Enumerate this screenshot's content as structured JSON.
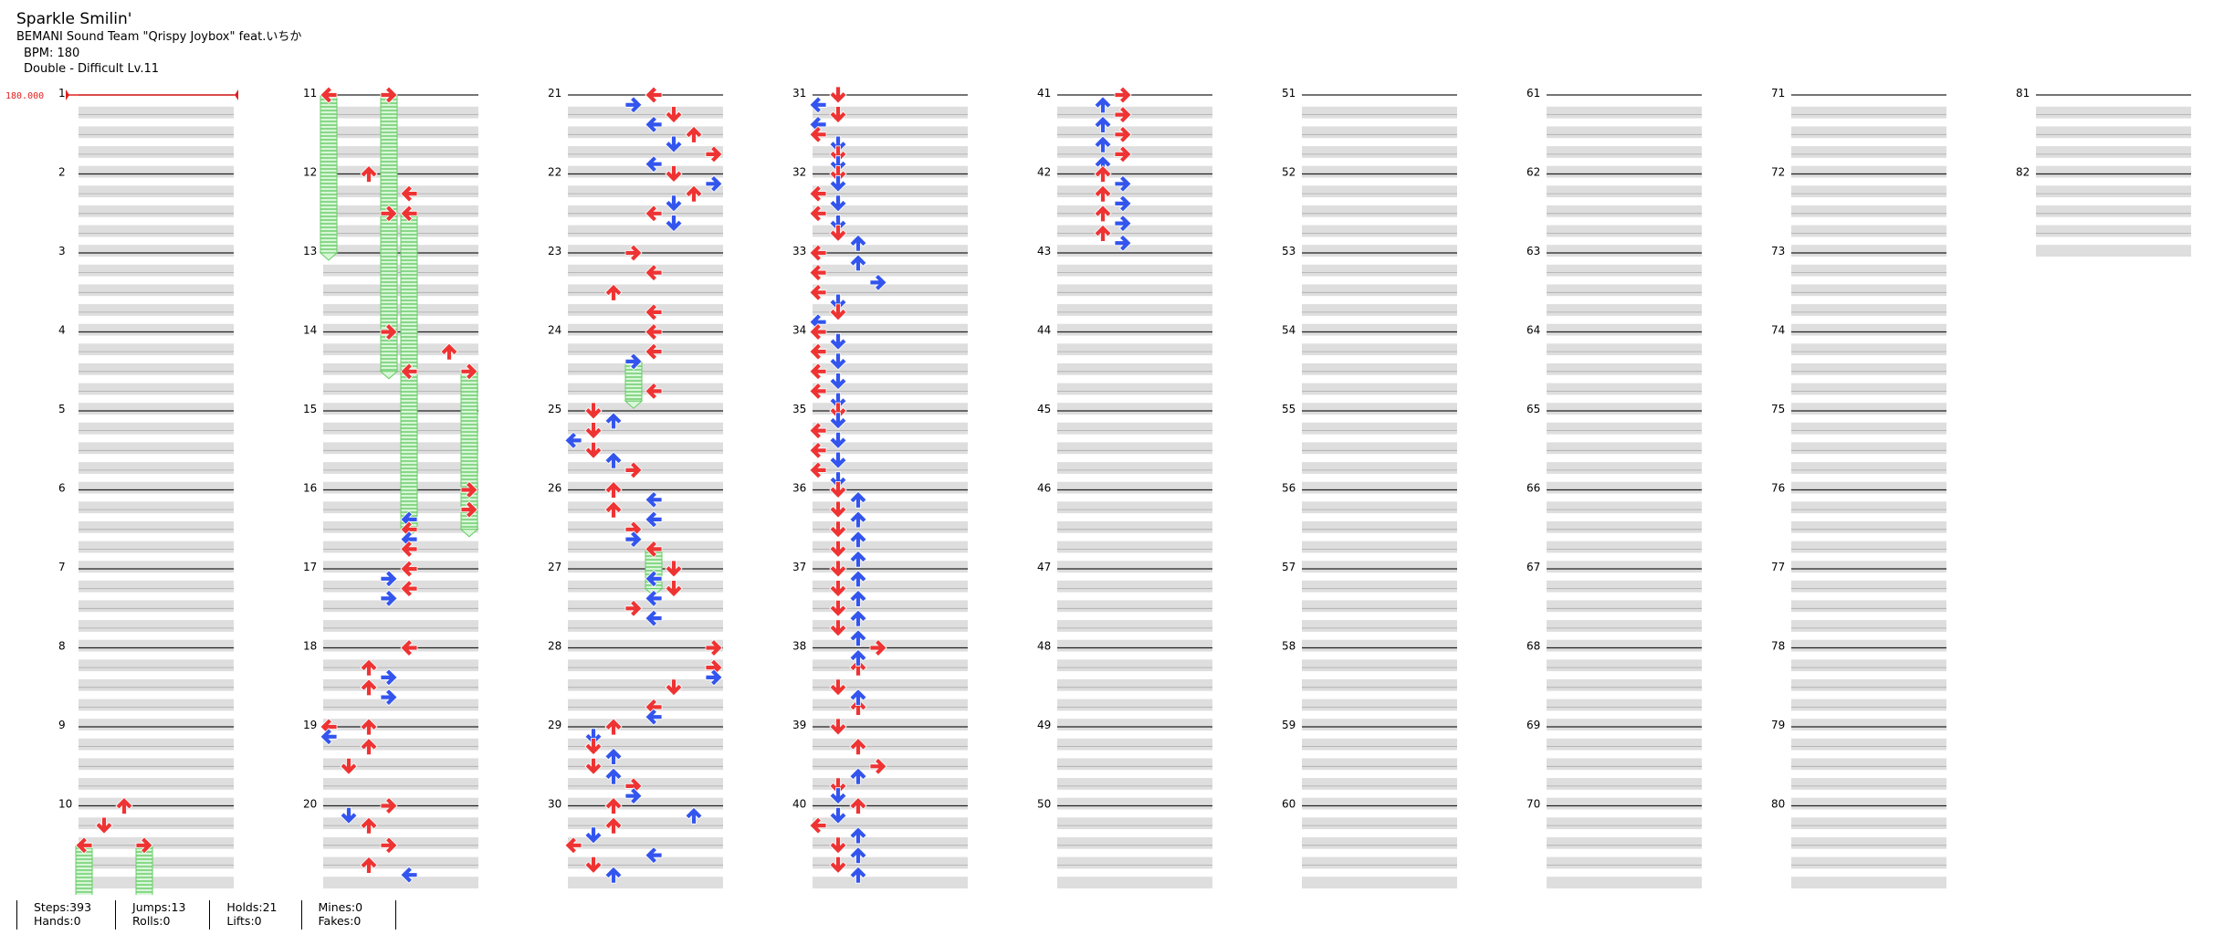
{
  "song": {
    "title": "Sparkle Smilin'",
    "artist": "BEMANI Sound Team \"Qrispy Joybox\" feat.いちか",
    "bpm_text": "BPM: 180",
    "chart_text": "Double - Difficult  Lv.11"
  },
  "bpm_marker": {
    "text": "180.000",
    "color": "#e02020"
  },
  "colors": {
    "quarter": "#ee3333",
    "eighth": "#3355ee",
    "hold": "#66cc66",
    "hold_fill": "#ccf2cc",
    "band": "#dedede"
  },
  "measures": [
    "1",
    "2",
    "3",
    "4",
    "5",
    "6",
    "7",
    "8",
    "9",
    "10",
    "11",
    "12",
    "13",
    "14",
    "15",
    "16",
    "17",
    "18",
    "19",
    "20",
    "21",
    "22",
    "23",
    "24",
    "25",
    "26",
    "27",
    "28",
    "29",
    "30",
    "31",
    "32",
    "33",
    "34",
    "35",
    "36",
    "37",
    "38",
    "39",
    "40",
    "41",
    "42",
    "43",
    "44",
    "45",
    "46",
    "47",
    "48",
    "49",
    "50",
    "51",
    "52",
    "53",
    "54",
    "55",
    "56",
    "57",
    "58",
    "59",
    "60",
    "61",
    "62",
    "63",
    "64",
    "65",
    "66",
    "67",
    "68",
    "69",
    "70",
    "71",
    "72",
    "73",
    "74",
    "75",
    "76",
    "77",
    "78",
    "79",
    "80",
    "81",
    "82"
  ],
  "stats": {
    "steps": "Steps:393",
    "jumps": "Jumps:13",
    "holds": "Holds:21",
    "mines": "Mines:0",
    "hands": "Hands:0",
    "rolls": "Rolls:0",
    "lifts": "Lifts:0",
    "fakes": "Fakes:0"
  },
  "chart_data": {
    "type": "table",
    "chart_kind": "dance-double step chart",
    "bpm": 180,
    "measures_total": 82,
    "lanes": [
      "left",
      "down",
      "up",
      "right",
      "left",
      "down",
      "up",
      "right"
    ],
    "notes": [
      {
        "m": 10,
        "beat": 0,
        "lane": 2
      },
      {
        "m": 10,
        "beat": 1,
        "lane": 1
      },
      {
        "m": 10,
        "beat": 2,
        "lane": 0,
        "hold": 1
      },
      {
        "m": 10,
        "beat": 2,
        "lane": 3,
        "hold": 1
      },
      {
        "m": 11,
        "beat": 0,
        "lane": 0,
        "hold": 2
      },
      {
        "m": 11,
        "beat": 0,
        "lane": 3,
        "hold": 2
      },
      {
        "m": 12,
        "beat": 0,
        "lane": 2
      },
      {
        "m": 12,
        "beat": 1,
        "lane": 4
      },
      {
        "m": 12,
        "beat": 2,
        "lane": 3,
        "hold": 2
      },
      {
        "m": 12,
        "beat": 2,
        "lane": 4,
        "hold": 2
      },
      {
        "m": 14,
        "beat": 0,
        "lane": 3
      },
      {
        "m": 14,
        "beat": 1,
        "lane": 6
      },
      {
        "m": 14,
        "beat": 2,
        "lane": 4,
        "hold": 2
      },
      {
        "m": 14,
        "beat": 2,
        "lane": 7,
        "hold": 2
      },
      {
        "m": 16,
        "beat": 0,
        "lane": 7
      },
      {
        "m": 16,
        "beat": 1,
        "lane": 7
      },
      {
        "m": 16,
        "beat": 1.5,
        "lane": 4
      },
      {
        "m": 16,
        "beat": 2,
        "lane": 4
      },
      {
        "m": 16,
        "beat": 2.5,
        "lane": 4
      },
      {
        "m": 16,
        "beat": 3,
        "lane": 4
      },
      {
        "m": 17,
        "beat": 0,
        "lane": 4
      },
      {
        "m": 17,
        "beat": 0.5,
        "lane": 3
      },
      {
        "m": 17,
        "beat": 1,
        "lane": 4
      },
      {
        "m": 17,
        "beat": 1.5,
        "lane": 3
      },
      {
        "m": 18,
        "beat": 0,
        "lane": 4
      },
      {
        "m": 18,
        "beat": 1,
        "lane": 2
      },
      {
        "m": 18,
        "beat": 1.5,
        "lane": 3
      },
      {
        "m": 18,
        "beat": 2,
        "lane": 2
      },
      {
        "m": 18,
        "beat": 2.5,
        "lane": 3
      },
      {
        "m": 19,
        "beat": 0,
        "lane": 0
      },
      {
        "m": 19,
        "beat": 0,
        "lane": 2
      },
      {
        "m": 19,
        "beat": 0.5,
        "lane": 0
      },
      {
        "m": 19,
        "beat": 1,
        "lane": 2
      },
      {
        "m": 19,
        "beat": 2,
        "lane": 1
      },
      {
        "m": 20,
        "beat": 0,
        "lane": 3
      },
      {
        "m": 20,
        "beat": 0.5,
        "lane": 1
      },
      {
        "m": 20,
        "beat": 1,
        "lane": 2
      },
      {
        "m": 20,
        "beat": 2,
        "lane": 3
      },
      {
        "m": 20,
        "beat": 3,
        "lane": 2
      },
      {
        "m": 20,
        "beat": 3.5,
        "lane": 4
      },
      {
        "m": 21,
        "beat": 0,
        "lane": 4
      },
      {
        "m": 21,
        "beat": 0.5,
        "lane": 3
      },
      {
        "m": 21,
        "beat": 1,
        "lane": 5
      },
      {
        "m": 21,
        "beat": 1.5,
        "lane": 4
      },
      {
        "m": 21,
        "beat": 2,
        "lane": 6
      },
      {
        "m": 21,
        "beat": 2.5,
        "lane": 5
      },
      {
        "m": 21,
        "beat": 3,
        "lane": 7
      },
      {
        "m": 21,
        "beat": 3.5,
        "lane": 4
      },
      {
        "m": 22,
        "beat": 0,
        "lane": 5
      },
      {
        "m": 22,
        "beat": 0.5,
        "lane": 7
      },
      {
        "m": 22,
        "beat": 1,
        "lane": 6
      },
      {
        "m": 22,
        "beat": 1.5,
        "lane": 5
      },
      {
        "m": 22,
        "beat": 2,
        "lane": 4
      },
      {
        "m": 22,
        "beat": 2.5,
        "lane": 5
      },
      {
        "m": 23,
        "beat": 0,
        "lane": 3
      },
      {
        "m": 23,
        "beat": 1,
        "lane": 4
      },
      {
        "m": 23,
        "beat": 2,
        "lane": 2
      },
      {
        "m": 23,
        "beat": 3,
        "lane": 4
      },
      {
        "m": 24,
        "beat": 0,
        "lane": 4
      },
      {
        "m": 24,
        "beat": 1,
        "lane": 4
      },
      {
        "m": 24,
        "beat": 1.5,
        "lane": 3,
        "hold": 0.5
      },
      {
        "m": 24,
        "beat": 3,
        "lane": 4
      },
      {
        "m": 25,
        "beat": 0,
        "lane": 1
      },
      {
        "m": 25,
        "beat": 0.5,
        "lane": 2
      },
      {
        "m": 25,
        "beat": 1,
        "lane": 1
      },
      {
        "m": 25,
        "beat": 1.5,
        "lane": 0
      },
      {
        "m": 25,
        "beat": 2,
        "lane": 1
      },
      {
        "m": 25,
        "beat": 2.5,
        "lane": 2
      },
      {
        "m": 25,
        "beat": 3,
        "lane": 3
      },
      {
        "m": 26,
        "beat": 0,
        "lane": 2
      },
      {
        "m": 26,
        "beat": 0.5,
        "lane": 4
      },
      {
        "m": 26,
        "beat": 1,
        "lane": 2
      },
      {
        "m": 26,
        "beat": 1.5,
        "lane": 4
      },
      {
        "m": 26,
        "beat": 2,
        "lane": 3
      },
      {
        "m": 26,
        "beat": 2.5,
        "lane": 3
      },
      {
        "m": 26,
        "beat": 3,
        "lane": 4,
        "hold": 0.5
      },
      {
        "m": 27,
        "beat": 0,
        "lane": 5
      },
      {
        "m": 27,
        "beat": 0.5,
        "lane": 4
      },
      {
        "m": 27,
        "beat": 1,
        "lane": 5
      },
      {
        "m": 27,
        "beat": 1.5,
        "lane": 4
      },
      {
        "m": 27,
        "beat": 2,
        "lane": 3
      },
      {
        "m": 27,
        "beat": 2.5,
        "lane": 4
      },
      {
        "m": 28,
        "beat": 0,
        "lane": 7
      },
      {
        "m": 28,
        "beat": 1,
        "lane": 7
      },
      {
        "m": 28,
        "beat": 1.5,
        "lane": 7
      },
      {
        "m": 28,
        "beat": 2,
        "lane": 5
      },
      {
        "m": 28,
        "beat": 3,
        "lane": 4
      },
      {
        "m": 28,
        "beat": 3.5,
        "lane": 4
      },
      {
        "m": 29,
        "beat": 0,
        "lane": 2
      },
      {
        "m": 29,
        "beat": 0.5,
        "lane": 1
      },
      {
        "m": 29,
        "beat": 1,
        "lane": 1
      },
      {
        "m": 29,
        "beat": 1.5,
        "lane": 2
      },
      {
        "m": 29,
        "beat": 2,
        "lane": 1
      },
      {
        "m": 29,
        "beat": 2.5,
        "lane": 2
      },
      {
        "m": 29,
        "beat": 3,
        "lane": 3
      },
      {
        "m": 29,
        "beat": 3.5,
        "lane": 3
      },
      {
        "m": 30,
        "beat": 0,
        "lane": 2
      },
      {
        "m": 30,
        "beat": 0.5,
        "lane": 6
      },
      {
        "m": 30,
        "beat": 1,
        "lane": 2
      },
      {
        "m": 30,
        "beat": 1.5,
        "lane": 1
      },
      {
        "m": 30,
        "beat": 2,
        "lane": 0
      },
      {
        "m": 30,
        "beat": 2.5,
        "lane": 4
      },
      {
        "m": 30,
        "beat": 3,
        "lane": 1
      },
      {
        "m": 30,
        "beat": 3.5,
        "lane": 2
      },
      {
        "m": 31,
        "beat": 0,
        "lane": 1
      },
      {
        "m": 31,
        "beat": 0.5,
        "lane": 0
      },
      {
        "m": 31,
        "beat": 1,
        "lane": 1
      },
      {
        "m": 31,
        "beat": 1.5,
        "lane": 0
      },
      {
        "m": 31,
        "beat": 2,
        "lane": 0
      },
      {
        "m": 31,
        "beat": 2.5,
        "lane": 1
      },
      {
        "m": 31,
        "beat": 3,
        "lane": 1
      },
      {
        "m": 31,
        "beat": 3.5,
        "lane": 1
      },
      {
        "m": 32,
        "beat": 0,
        "lane": 1
      },
      {
        "m": 32,
        "beat": 0.5,
        "lane": 1
      },
      {
        "m": 32,
        "beat": 1,
        "lane": 0
      },
      {
        "m": 32,
        "beat": 1.5,
        "lane": 1
      },
      {
        "m": 32,
        "beat": 2,
        "lane": 0
      },
      {
        "m": 32,
        "beat": 2.5,
        "lane": 1
      },
      {
        "m": 32,
        "beat": 3,
        "lane": 1
      },
      {
        "m": 32,
        "beat": 3.5,
        "lane": 2
      },
      {
        "m": 33,
        "beat": 0,
        "lane": 0
      },
      {
        "m": 33,
        "beat": 0.5,
        "lane": 2
      },
      {
        "m": 33,
        "beat": 1,
        "lane": 0
      },
      {
        "m": 33,
        "beat": 1.5,
        "lane": 3
      },
      {
        "m": 33,
        "beat": 2,
        "lane": 0
      },
      {
        "m": 33,
        "beat": 2.5,
        "lane": 1
      },
      {
        "m": 33,
        "beat": 3,
        "lane": 1
      },
      {
        "m": 33,
        "beat": 3.5,
        "lane": 0
      },
      {
        "m": 34,
        "beat": 0,
        "lane": 0
      },
      {
        "m": 34,
        "beat": 0.5,
        "lane": 1
      },
      {
        "m": 34,
        "beat": 1,
        "lane": 0
      },
      {
        "m": 34,
        "beat": 1.5,
        "lane": 1
      },
      {
        "m": 34,
        "beat": 2,
        "lane": 0
      },
      {
        "m": 34,
        "beat": 2.5,
        "lane": 1
      },
      {
        "m": 34,
        "beat": 3,
        "lane": 0
      },
      {
        "m": 34,
        "beat": 3.5,
        "lane": 1
      },
      {
        "m": 35,
        "beat": 0,
        "lane": 1
      },
      {
        "m": 35,
        "beat": 0.5,
        "lane": 1
      },
      {
        "m": 35,
        "beat": 1,
        "lane": 0
      },
      {
        "m": 35,
        "beat": 1.5,
        "lane": 1
      },
      {
        "m": 35,
        "beat": 2,
        "lane": 0
      },
      {
        "m": 35,
        "beat": 2.5,
        "lane": 1
      },
      {
        "m": 35,
        "beat": 3,
        "lane": 0
      },
      {
        "m": 35,
        "beat": 3.5,
        "lane": 1
      },
      {
        "m": 36,
        "beat": 0,
        "lane": 1
      },
      {
        "m": 36,
        "beat": 0.5,
        "lane": 2
      },
      {
        "m": 36,
        "beat": 1,
        "lane": 1
      },
      {
        "m": 36,
        "beat": 1.5,
        "lane": 2
      },
      {
        "m": 36,
        "beat": 2,
        "lane": 1
      },
      {
        "m": 36,
        "beat": 2.5,
        "lane": 2
      },
      {
        "m": 36,
        "beat": 3,
        "lane": 1
      },
      {
        "m": 36,
        "beat": 3.5,
        "lane": 2
      },
      {
        "m": 37,
        "beat": 0,
        "lane": 1
      },
      {
        "m": 37,
        "beat": 0.5,
        "lane": 2
      },
      {
        "m": 37,
        "beat": 1,
        "lane": 1
      },
      {
        "m": 37,
        "beat": 1.5,
        "lane": 2
      },
      {
        "m": 37,
        "beat": 2,
        "lane": 1
      },
      {
        "m": 37,
        "beat": 2.5,
        "lane": 2
      },
      {
        "m": 37,
        "beat": 3,
        "lane": 1
      },
      {
        "m": 37,
        "beat": 3.5,
        "lane": 2
      },
      {
        "m": 38,
        "beat": 0,
        "lane": 3
      },
      {
        "m": 38,
        "beat": 1,
        "lane": 2
      },
      {
        "m": 38,
        "beat": 2,
        "lane": 1
      },
      {
        "m": 38,
        "beat": 3,
        "lane": 2
      },
      {
        "m": 38,
        "beat": 0.5,
        "lane": 2
      },
      {
        "m": 38,
        "beat": 2.5,
        "lane": 2
      },
      {
        "m": 39,
        "beat": 0,
        "lane": 1
      },
      {
        "m": 39,
        "beat": 1,
        "lane": 2
      },
      {
        "m": 39,
        "beat": 2,
        "lane": 3
      },
      {
        "m": 39,
        "beat": 2.5,
        "lane": 2
      },
      {
        "m": 39,
        "beat": 3,
        "lane": 1
      },
      {
        "m": 39,
        "beat": 3.5,
        "lane": 1
      },
      {
        "m": 40,
        "beat": 0,
        "lane": 2
      },
      {
        "m": 40,
        "beat": 0.5,
        "lane": 1
      },
      {
        "m": 40,
        "beat": 1,
        "lane": 0
      },
      {
        "m": 40,
        "beat": 1.5,
        "lane": 2
      },
      {
        "m": 40,
        "beat": 2,
        "lane": 1
      },
      {
        "m": 40,
        "beat": 2.5,
        "lane": 2
      },
      {
        "m": 40,
        "beat": 3,
        "lane": 1
      },
      {
        "m": 40,
        "beat": 3.5,
        "lane": 2
      },
      {
        "m": 41,
        "beat": 0,
        "lane": 3
      },
      {
        "m": 41,
        "beat": 0.5,
        "lane": 2
      },
      {
        "m": 41,
        "beat": 1,
        "lane": 3
      },
      {
        "m": 41,
        "beat": 1.5,
        "lane": 2
      },
      {
        "m": 41,
        "beat": 2,
        "lane": 3
      },
      {
        "m": 41,
        "beat": 2.5,
        "lane": 2
      },
      {
        "m": 41,
        "beat": 3,
        "lane": 3
      },
      {
        "m": 41,
        "beat": 3.5,
        "lane": 2
      },
      {
        "m": 42,
        "beat": 0,
        "lane": 2
      },
      {
        "m": 42,
        "beat": 0.5,
        "lane": 3
      },
      {
        "m": 42,
        "beat": 1,
        "lane": 2
      },
      {
        "m": 42,
        "beat": 1.5,
        "lane": 3
      },
      {
        "m": 42,
        "beat": 2,
        "lane": 2
      },
      {
        "m": 42,
        "beat": 2.5,
        "lane": 3
      },
      {
        "m": 42,
        "beat": 3,
        "lane": 2
      },
      {
        "m": 42,
        "beat": 3.5,
        "lane": 3
      }
    ]
  }
}
